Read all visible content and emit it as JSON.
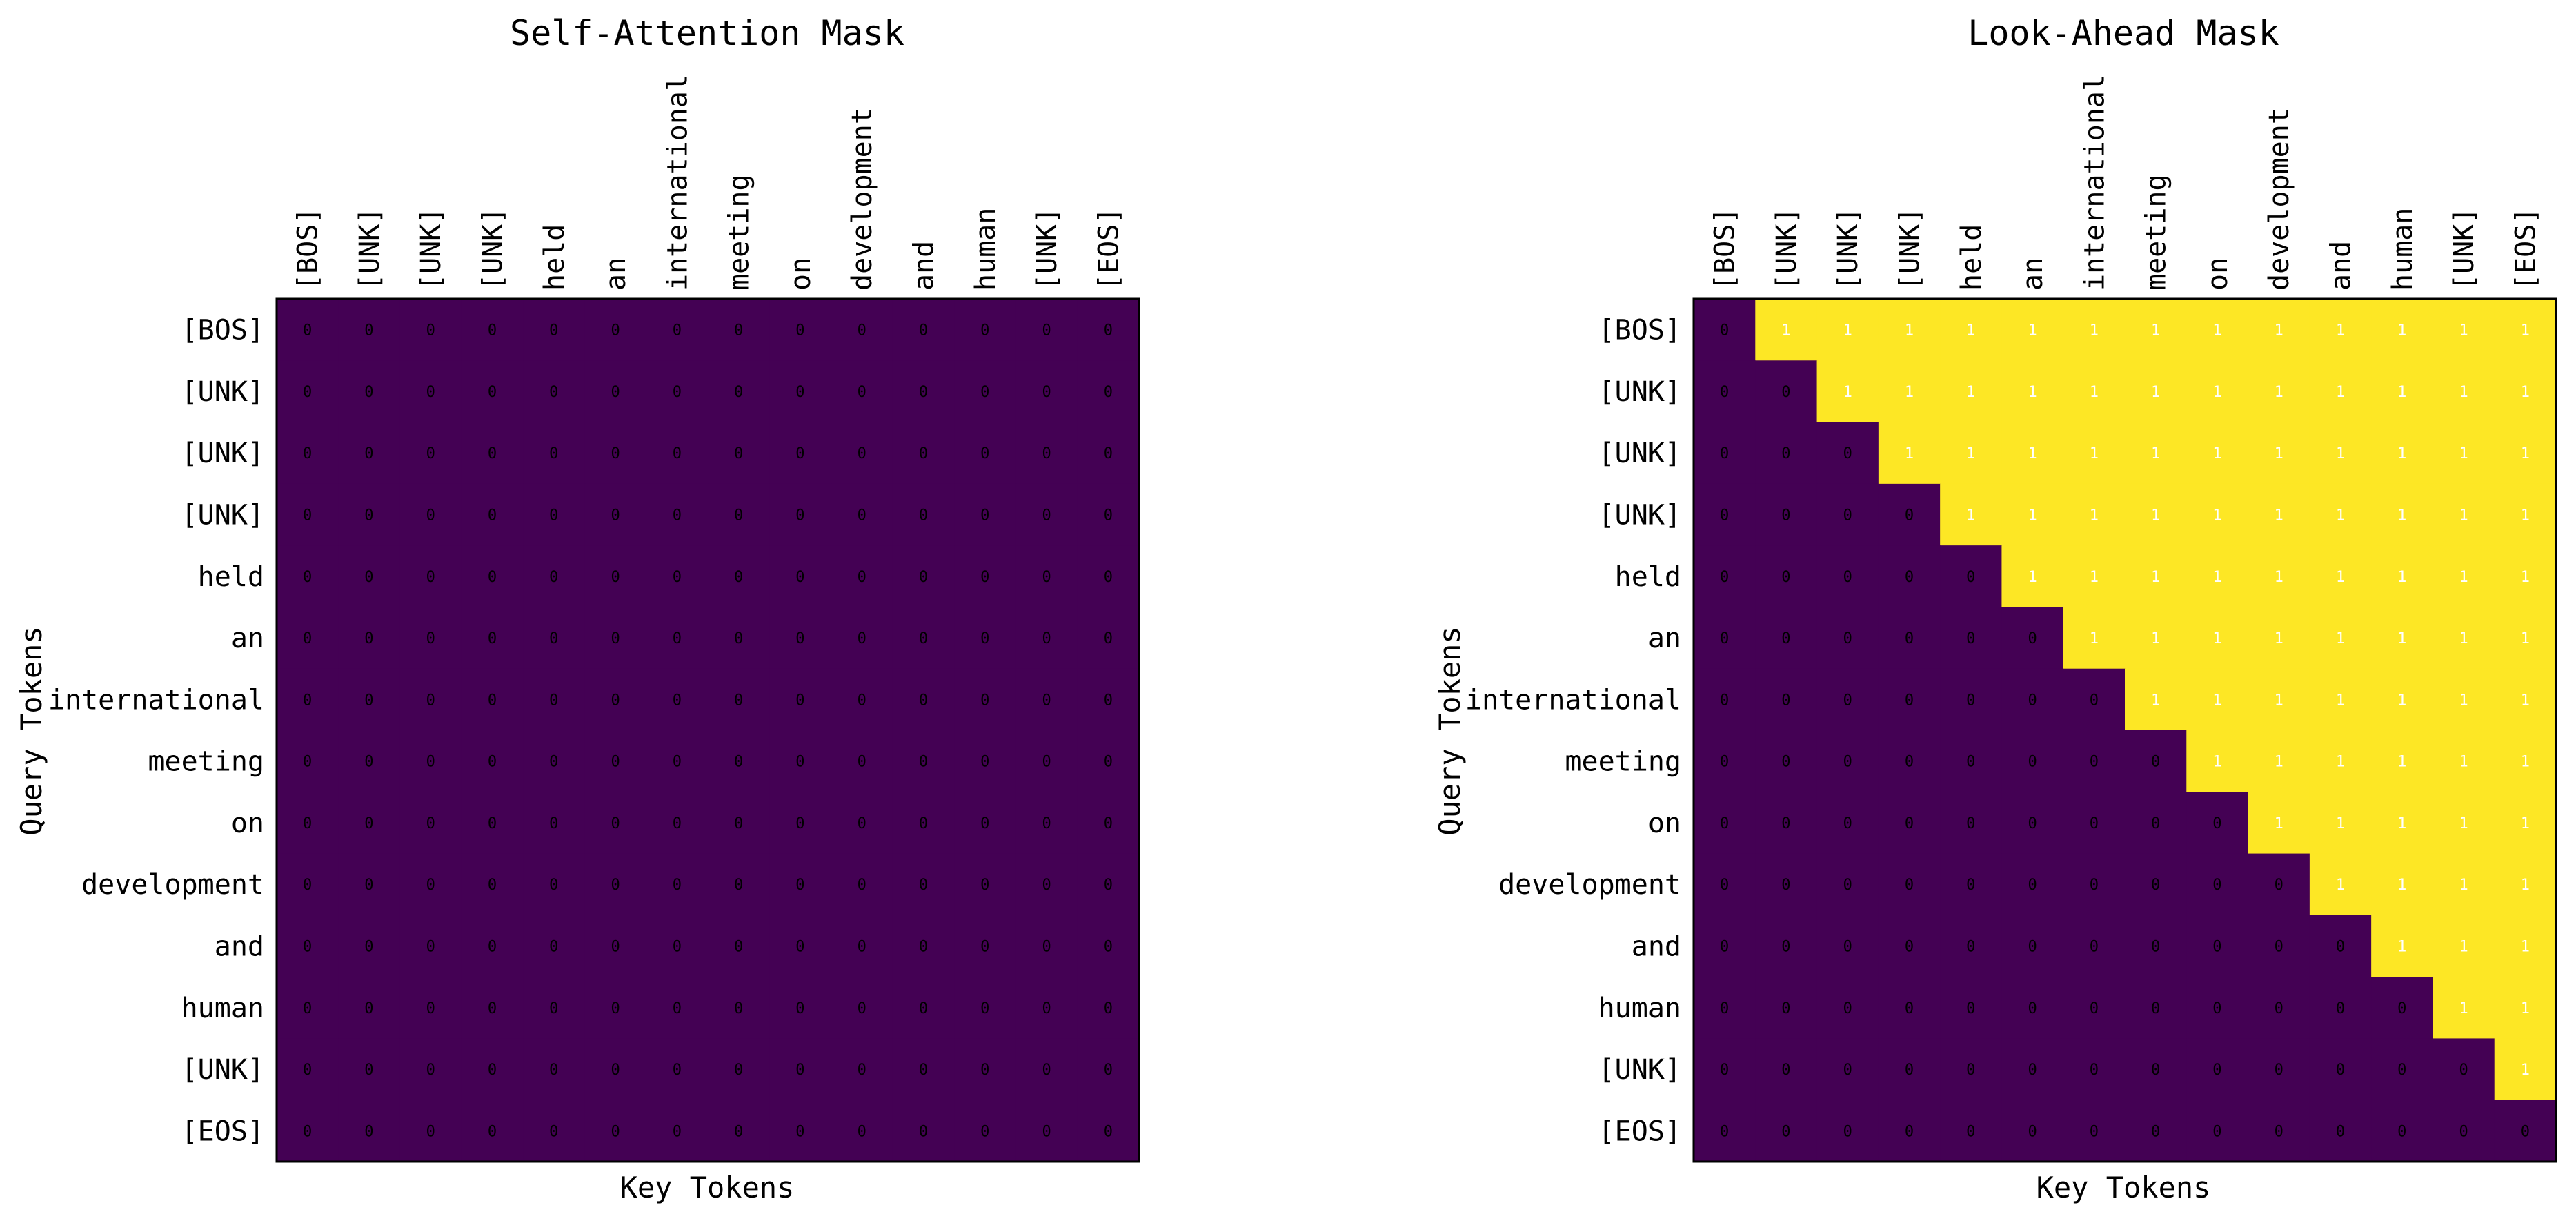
{
  "colors": {
    "zero": "#440154",
    "one": "#fde725",
    "label_on_zero": "#000000",
    "label_on_one": "#ffffff",
    "frame": "#000000"
  },
  "chart_data": [
    {
      "type": "heatmap",
      "title": "Self-Attention Mask",
      "xlabel": "Key Tokens",
      "ylabel": "Query Tokens",
      "x_tokens": [
        "[BOS]",
        "[UNK]",
        "[UNK]",
        "[UNK]",
        "held",
        "an",
        "international",
        "meeting",
        "on",
        "development",
        "and",
        "human",
        "[UNK]",
        "[EOS]"
      ],
      "y_tokens": [
        "[BOS]",
        "[UNK]",
        "[UNK]",
        "[UNK]",
        "held",
        "an",
        "international",
        "meeting",
        "on",
        "development",
        "and",
        "human",
        "[UNK]",
        "[EOS]"
      ],
      "x_tick_position": "top",
      "annotations": true,
      "values": [
        [
          0,
          0,
          0,
          0,
          0,
          0,
          0,
          0,
          0,
          0,
          0,
          0,
          0,
          0
        ],
        [
          0,
          0,
          0,
          0,
          0,
          0,
          0,
          0,
          0,
          0,
          0,
          0,
          0,
          0
        ],
        [
          0,
          0,
          0,
          0,
          0,
          0,
          0,
          0,
          0,
          0,
          0,
          0,
          0,
          0
        ],
        [
          0,
          0,
          0,
          0,
          0,
          0,
          0,
          0,
          0,
          0,
          0,
          0,
          0,
          0
        ],
        [
          0,
          0,
          0,
          0,
          0,
          0,
          0,
          0,
          0,
          0,
          0,
          0,
          0,
          0
        ],
        [
          0,
          0,
          0,
          0,
          0,
          0,
          0,
          0,
          0,
          0,
          0,
          0,
          0,
          0
        ],
        [
          0,
          0,
          0,
          0,
          0,
          0,
          0,
          0,
          0,
          0,
          0,
          0,
          0,
          0
        ],
        [
          0,
          0,
          0,
          0,
          0,
          0,
          0,
          0,
          0,
          0,
          0,
          0,
          0,
          0
        ],
        [
          0,
          0,
          0,
          0,
          0,
          0,
          0,
          0,
          0,
          0,
          0,
          0,
          0,
          0
        ],
        [
          0,
          0,
          0,
          0,
          0,
          0,
          0,
          0,
          0,
          0,
          0,
          0,
          0,
          0
        ],
        [
          0,
          0,
          0,
          0,
          0,
          0,
          0,
          0,
          0,
          0,
          0,
          0,
          0,
          0
        ],
        [
          0,
          0,
          0,
          0,
          0,
          0,
          0,
          0,
          0,
          0,
          0,
          0,
          0,
          0
        ],
        [
          0,
          0,
          0,
          0,
          0,
          0,
          0,
          0,
          0,
          0,
          0,
          0,
          0,
          0
        ],
        [
          0,
          0,
          0,
          0,
          0,
          0,
          0,
          0,
          0,
          0,
          0,
          0,
          0,
          0
        ]
      ]
    },
    {
      "type": "heatmap",
      "title": "Look-Ahead Mask",
      "xlabel": "Key Tokens",
      "ylabel": "Query Tokens",
      "x_tokens": [
        "[BOS]",
        "[UNK]",
        "[UNK]",
        "[UNK]",
        "held",
        "an",
        "international",
        "meeting",
        "on",
        "development",
        "and",
        "human",
        "[UNK]",
        "[EOS]"
      ],
      "y_tokens": [
        "[BOS]",
        "[UNK]",
        "[UNK]",
        "[UNK]",
        "held",
        "an",
        "international",
        "meeting",
        "on",
        "development",
        "and",
        "human",
        "[UNK]",
        "[EOS]"
      ],
      "x_tick_position": "top",
      "annotations": true,
      "values": [
        [
          0,
          1,
          1,
          1,
          1,
          1,
          1,
          1,
          1,
          1,
          1,
          1,
          1,
          1
        ],
        [
          0,
          0,
          1,
          1,
          1,
          1,
          1,
          1,
          1,
          1,
          1,
          1,
          1,
          1
        ],
        [
          0,
          0,
          0,
          1,
          1,
          1,
          1,
          1,
          1,
          1,
          1,
          1,
          1,
          1
        ],
        [
          0,
          0,
          0,
          0,
          1,
          1,
          1,
          1,
          1,
          1,
          1,
          1,
          1,
          1
        ],
        [
          0,
          0,
          0,
          0,
          0,
          1,
          1,
          1,
          1,
          1,
          1,
          1,
          1,
          1
        ],
        [
          0,
          0,
          0,
          0,
          0,
          0,
          1,
          1,
          1,
          1,
          1,
          1,
          1,
          1
        ],
        [
          0,
          0,
          0,
          0,
          0,
          0,
          0,
          1,
          1,
          1,
          1,
          1,
          1,
          1
        ],
        [
          0,
          0,
          0,
          0,
          0,
          0,
          0,
          0,
          1,
          1,
          1,
          1,
          1,
          1
        ],
        [
          0,
          0,
          0,
          0,
          0,
          0,
          0,
          0,
          0,
          1,
          1,
          1,
          1,
          1
        ],
        [
          0,
          0,
          0,
          0,
          0,
          0,
          0,
          0,
          0,
          0,
          1,
          1,
          1,
          1
        ],
        [
          0,
          0,
          0,
          0,
          0,
          0,
          0,
          0,
          0,
          0,
          0,
          1,
          1,
          1
        ],
        [
          0,
          0,
          0,
          0,
          0,
          0,
          0,
          0,
          0,
          0,
          0,
          0,
          1,
          1
        ],
        [
          0,
          0,
          0,
          0,
          0,
          0,
          0,
          0,
          0,
          0,
          0,
          0,
          0,
          1
        ],
        [
          0,
          0,
          0,
          0,
          0,
          0,
          0,
          0,
          0,
          0,
          0,
          0,
          0,
          0
        ]
      ]
    }
  ]
}
